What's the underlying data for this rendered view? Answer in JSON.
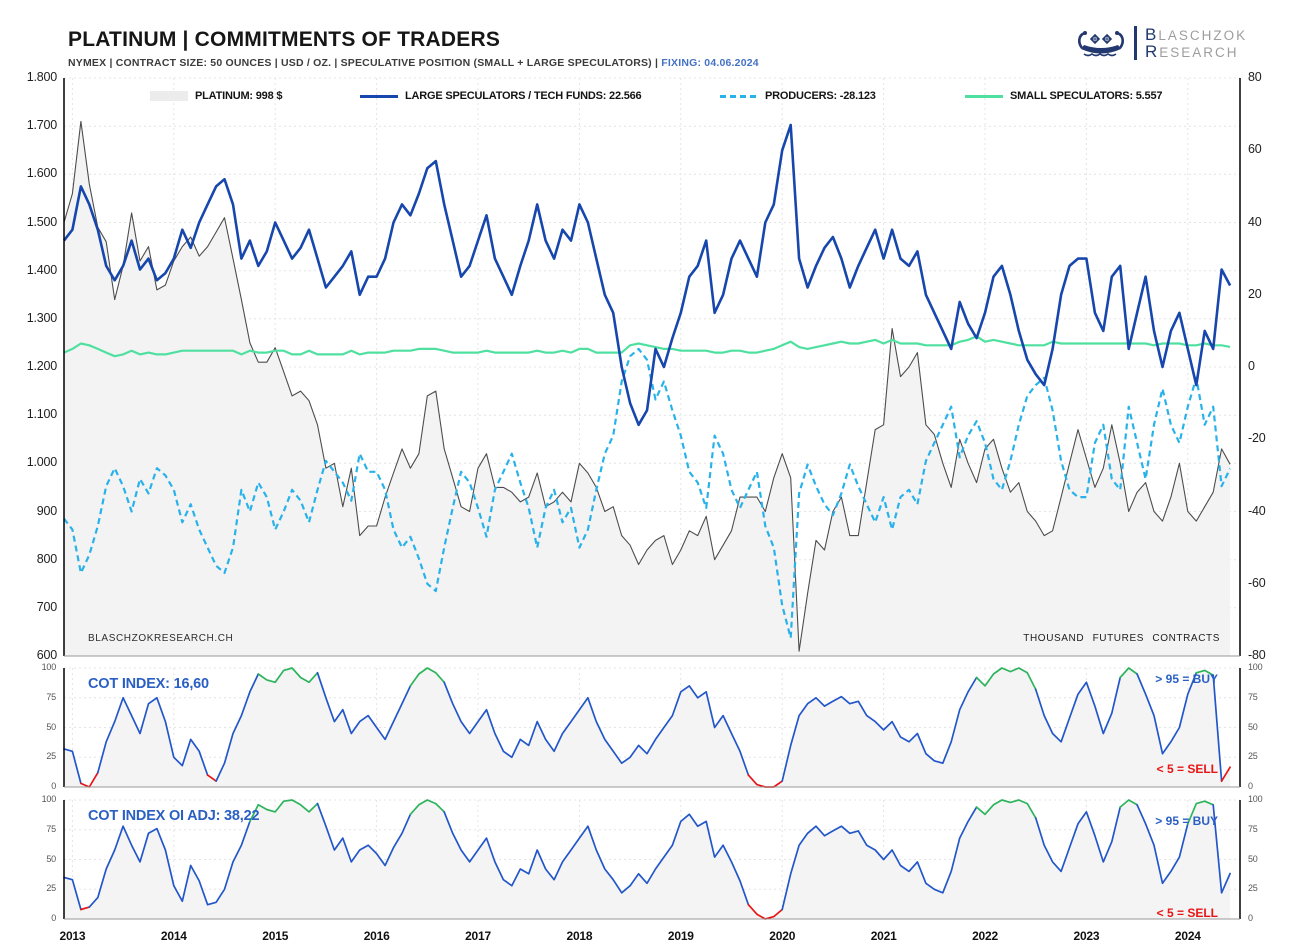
{
  "header": {
    "title": "PLATINUM | COMMITMENTS OF TRADERS",
    "subtitle": "NYMEX  |  CONTRACT SIZE: 50 OUNCES  |  USD / OZ.  |  SPECULATIVE POSITION (SMALL + LARGE SPECULATORS)  |",
    "fixing": "FIXING: 04.06.2024"
  },
  "logo": {
    "line1_initial": "B",
    "line1_rest": "LASCHZOK",
    "line2_initial": "R",
    "line2_rest": "ESEARCH"
  },
  "colors": {
    "platinum_fill": "#ececec",
    "platinum_line": "#4d4d4d",
    "large_specs": "#1747ad",
    "producers": "#29b2ea",
    "small_specs": "#4fe0a0",
    "cot_blue": "#2357c9",
    "cot_red": "#e81515",
    "cot_green": "#2db45c",
    "label_blue": "#2a5fc4",
    "fixing_blue": "#4472c4"
  },
  "legend": [
    {
      "label": "PLATINUM: 998 $",
      "swatch": "box",
      "color": "#ececec"
    },
    {
      "label": "LARGE SPECULATORS / TECH FUNDS: 22.566",
      "swatch": "line",
      "color": "#1747ad"
    },
    {
      "label": "PRODUCERS: -28.123",
      "swatch": "dashed",
      "color": "#29b2ea"
    },
    {
      "label": "SMALL SPECULATORS: 5.557",
      "swatch": "line",
      "color": "#4fe0a0"
    }
  ],
  "footer": {
    "watermark": "BLASCHZOKRESEARCH.CH",
    "right_note": "THOUSAND FUTURES CONTRACTS"
  },
  "cot_panel": {
    "label": "COT INDEX: 16,60",
    "buy_note": "> 95 = BUY",
    "sell_note": "< 5 = SELL"
  },
  "cot_oi_panel": {
    "label": "COT INDEX OI ADJ: 38,22",
    "buy_note": "> 95 = BUY",
    "sell_note": "< 5 = SELL"
  },
  "axes": {
    "price_ticks": [
      "1.800",
      "1.700",
      "1.600",
      "1.500",
      "1.400",
      "1.300",
      "1.200",
      "1.100",
      "1.000",
      "900",
      "800",
      "700",
      "600"
    ],
    "contracts_ticks": [
      "80",
      "60",
      "40",
      "20",
      "0",
      "-20",
      "-40",
      "-60",
      "-80"
    ],
    "cot_ticks": [
      "100",
      "75",
      "50",
      "25",
      "0"
    ],
    "years": [
      "2013",
      "2014",
      "2015",
      "2016",
      "2017",
      "2018",
      "2019",
      "2020",
      "2021",
      "2022",
      "2023",
      "2024"
    ]
  },
  "chart_data": [
    {
      "type": "line",
      "title": "PLATINUM | COMMITMENTS OF TRADERS",
      "x_start_year": 2012.9167,
      "x_step_years": 0.083333,
      "x_range": [
        2012.92,
        2024.42
      ],
      "left_axis": {
        "label": "USD / OZ.",
        "range": [
          600,
          1800
        ]
      },
      "right_axis": {
        "label": "THOUSAND FUTURES CONTRACTS",
        "range": [
          -80,
          80
        ]
      },
      "grid": true,
      "legend_position": "top",
      "series": [
        {
          "name": "PLATINUM",
          "current_label": "998 $",
          "axis": "left",
          "style": "thin-filled",
          "values": [
            1500,
            1560,
            1710,
            1580,
            1490,
            1460,
            1340,
            1410,
            1520,
            1420,
            1450,
            1360,
            1370,
            1420,
            1450,
            1470,
            1430,
            1450,
            1480,
            1510,
            1425,
            1340,
            1250,
            1210,
            1210,
            1240,
            1190,
            1140,
            1150,
            1130,
            1080,
            990,
            1000,
            910,
            990,
            850,
            870,
            870,
            930,
            980,
            1030,
            990,
            1020,
            1140,
            1150,
            1030,
            970,
            910,
            900,
            990,
            1020,
            950,
            950,
            940,
            920,
            930,
            980,
            910,
            920,
            940,
            920,
            1000,
            980,
            950,
            900,
            910,
            850,
            830,
            790,
            820,
            840,
            850,
            790,
            820,
            860,
            850,
            890,
            800,
            830,
            860,
            930,
            930,
            930,
            900,
            970,
            1020,
            970,
            610,
            730,
            840,
            820,
            900,
            930,
            850,
            850,
            960,
            1070,
            1080,
            1280,
            1180,
            1200,
            1230,
            1080,
            1060,
            1000,
            950,
            1050,
            1000,
            960,
            1030,
            1050,
            990,
            940,
            960,
            900,
            880,
            850,
            860,
            930,
            1000,
            1070,
            1010,
            950,
            990,
            1080,
            1000,
            900,
            940,
            960,
            900,
            880,
            930,
            1000,
            900,
            880,
            910,
            940,
            1030,
            998
          ]
        },
        {
          "name": "LARGE SPECULATORS / TECH FUNDS",
          "current_label": "22.566",
          "axis": "right",
          "style": "solid",
          "values": [
            35,
            38,
            50,
            45,
            38,
            28,
            24,
            28,
            35,
            27,
            30,
            24,
            26,
            30,
            38,
            33,
            40,
            45,
            50,
            52,
            45,
            30,
            35,
            28,
            32,
            40,
            35,
            30,
            33,
            38,
            30,
            22,
            25,
            28,
            32,
            20,
            25,
            25,
            30,
            40,
            45,
            42,
            48,
            55,
            57,
            45,
            35,
            25,
            28,
            35,
            42,
            30,
            25,
            20,
            28,
            35,
            45,
            35,
            30,
            38,
            35,
            45,
            40,
            30,
            20,
            15,
            0,
            -10,
            -16,
            -12,
            5,
            0,
            8,
            15,
            25,
            28,
            35,
            15,
            20,
            30,
            35,
            30,
            25,
            40,
            45,
            60,
            67,
            30,
            22,
            28,
            33,
            36,
            30,
            22,
            28,
            33,
            38,
            30,
            38,
            30,
            28,
            32,
            20,
            15,
            10,
            5,
            18,
            12,
            8,
            15,
            25,
            28,
            20,
            10,
            2,
            -2,
            -5,
            5,
            20,
            28,
            30,
            30,
            15,
            10,
            25,
            28,
            5,
            15,
            25,
            10,
            0,
            10,
            15,
            5,
            -5,
            10,
            5,
            27,
            22.566
          ]
        },
        {
          "name": "PRODUCERS",
          "current_label": "-28.123",
          "axis": "right",
          "style": "dashed",
          "values": [
            -42,
            -45,
            -57,
            -52,
            -44,
            -33,
            -28,
            -33,
            -40,
            -31,
            -35,
            -28,
            -30,
            -34,
            -43,
            -38,
            -45,
            -50,
            -55,
            -57,
            -50,
            -34,
            -40,
            -32,
            -36,
            -45,
            -40,
            -34,
            -37,
            -43,
            -34,
            -26,
            -29,
            -32,
            -37,
            -24,
            -29,
            -29,
            -34,
            -45,
            -50,
            -47,
            -53,
            -60,
            -62,
            -50,
            -39,
            -29,
            -32,
            -39,
            -47,
            -34,
            -29,
            -24,
            -32,
            -39,
            -50,
            -39,
            -34,
            -43,
            -39,
            -50,
            -45,
            -34,
            -24,
            -19,
            -4,
            3,
            5,
            2,
            -9,
            -4,
            -12,
            -19,
            -29,
            -32,
            -39,
            -19,
            -24,
            -34,
            -39,
            -34,
            -29,
            -44,
            -50,
            -66,
            -75,
            -35,
            -27,
            -33,
            -38,
            -41,
            -35,
            -27,
            -33,
            -38,
            -43,
            -36,
            -45,
            -36,
            -34,
            -38,
            -26,
            -21,
            -16,
            -11,
            -25,
            -19,
            -15,
            -21,
            -31,
            -34,
            -26,
            -16,
            -8,
            -5,
            -3,
            -12,
            -26,
            -34,
            -36,
            -36,
            -21,
            -16,
            -31,
            -34,
            -11,
            -21,
            -31,
            -16,
            -6,
            -16,
            -21,
            -11,
            -3,
            -16,
            -11,
            -33,
            -28.123
          ]
        },
        {
          "name": "SMALL SPECULATORS",
          "current_label": "5.557",
          "axis": "right",
          "style": "solid",
          "values": [
            4,
            5,
            6.5,
            6,
            5,
            4,
            3,
            3.5,
            4.5,
            3.5,
            4,
            3.5,
            3.5,
            4,
            4.5,
            4.5,
            4.5,
            4.5,
            4.5,
            4.5,
            4.5,
            3.5,
            4.5,
            4,
            4,
            4.5,
            4.5,
            3.5,
            3.5,
            4.5,
            3.5,
            3.5,
            3.5,
            3.5,
            4.5,
            3.5,
            4,
            4,
            4,
            4.5,
            4.5,
            4.5,
            5,
            5,
            5,
            4.5,
            4,
            4,
            4,
            4,
            4.5,
            4,
            4,
            4,
            4,
            4,
            4.5,
            4,
            4,
            4.5,
            4,
            5,
            5,
            4,
            4,
            4,
            4,
            6,
            6.5,
            6,
            5.5,
            5,
            5,
            4.5,
            4.5,
            4.5,
            4.5,
            4,
            4,
            4.5,
            4.5,
            4,
            4,
            4.5,
            5,
            6,
            7,
            5.5,
            5,
            5.5,
            6,
            6.5,
            7,
            6.5,
            6.5,
            7,
            7.5,
            6.5,
            7.5,
            6.5,
            6.5,
            6.5,
            6,
            6,
            6,
            6,
            7,
            7.5,
            8.5,
            7,
            7.5,
            7,
            6.5,
            6,
            6,
            6,
            6,
            7,
            6.5,
            6.5,
            6.5,
            6.5,
            6.5,
            6.5,
            6.5,
            6.5,
            6.5,
            6.5,
            6.5,
            6,
            6.5,
            6.5,
            6.5,
            6,
            6,
            6.5,
            6,
            6,
            5.557
          ]
        }
      ]
    },
    {
      "type": "line",
      "name": "COT INDEX",
      "current_value": 16.6,
      "range": [
        0,
        100
      ],
      "thresholds": {
        "buy_above": 95,
        "sell_below": 5
      },
      "x_start_year": 2012.9167,
      "x_step_years": 0.083333,
      "values": [
        32,
        30,
        3,
        0,
        12,
        38,
        55,
        75,
        60,
        45,
        70,
        75,
        55,
        25,
        18,
        40,
        30,
        10,
        5,
        20,
        45,
        60,
        80,
        95,
        90,
        88,
        98,
        100,
        92,
        88,
        96,
        75,
        55,
        65,
        45,
        55,
        60,
        50,
        40,
        55,
        70,
        85,
        95,
        100,
        96,
        88,
        70,
        55,
        45,
        55,
        65,
        45,
        30,
        25,
        40,
        35,
        55,
        40,
        30,
        45,
        55,
        65,
        75,
        55,
        40,
        30,
        20,
        25,
        35,
        28,
        40,
        50,
        60,
        80,
        85,
        75,
        80,
        50,
        60,
        45,
        30,
        10,
        2,
        0,
        0,
        5,
        35,
        60,
        70,
        75,
        68,
        72,
        76,
        70,
        72,
        60,
        55,
        48,
        55,
        42,
        38,
        45,
        28,
        22,
        20,
        38,
        65,
        80,
        92,
        85,
        95,
        100,
        97,
        100,
        96,
        82,
        60,
        45,
        38,
        58,
        78,
        88,
        68,
        45,
        62,
        92,
        100,
        95,
        78,
        60,
        28,
        38,
        50,
        78,
        96,
        98,
        94,
        5,
        16.6
      ]
    },
    {
      "type": "line",
      "name": "COT INDEX OI ADJ",
      "current_value": 38.22,
      "range": [
        0,
        100
      ],
      "thresholds": {
        "buy_above": 95,
        "sell_below": 5
      },
      "x_start_year": 2012.9167,
      "x_step_years": 0.083333,
      "values": [
        35,
        33,
        8,
        10,
        18,
        42,
        58,
        78,
        62,
        48,
        72,
        76,
        58,
        28,
        15,
        45,
        32,
        12,
        14,
        25,
        48,
        62,
        82,
        96,
        92,
        90,
        99,
        100,
        96,
        90,
        97,
        78,
        58,
        68,
        48,
        58,
        62,
        55,
        45,
        60,
        72,
        88,
        96,
        100,
        97,
        90,
        72,
        58,
        48,
        58,
        68,
        48,
        33,
        28,
        42,
        38,
        58,
        42,
        33,
        48,
        58,
        68,
        78,
        58,
        42,
        33,
        22,
        28,
        38,
        30,
        42,
        52,
        62,
        82,
        88,
        78,
        82,
        52,
        62,
        48,
        32,
        12,
        4,
        0,
        2,
        8,
        38,
        62,
        72,
        78,
        70,
        74,
        78,
        72,
        74,
        62,
        58,
        50,
        58,
        45,
        40,
        48,
        30,
        25,
        22,
        40,
        68,
        82,
        94,
        88,
        96,
        100,
        98,
        100,
        97,
        85,
        62,
        48,
        40,
        60,
        80,
        90,
        70,
        48,
        65,
        94,
        100,
        96,
        80,
        62,
        30,
        40,
        52,
        80,
        97,
        99,
        96,
        22,
        38.22
      ]
    }
  ]
}
